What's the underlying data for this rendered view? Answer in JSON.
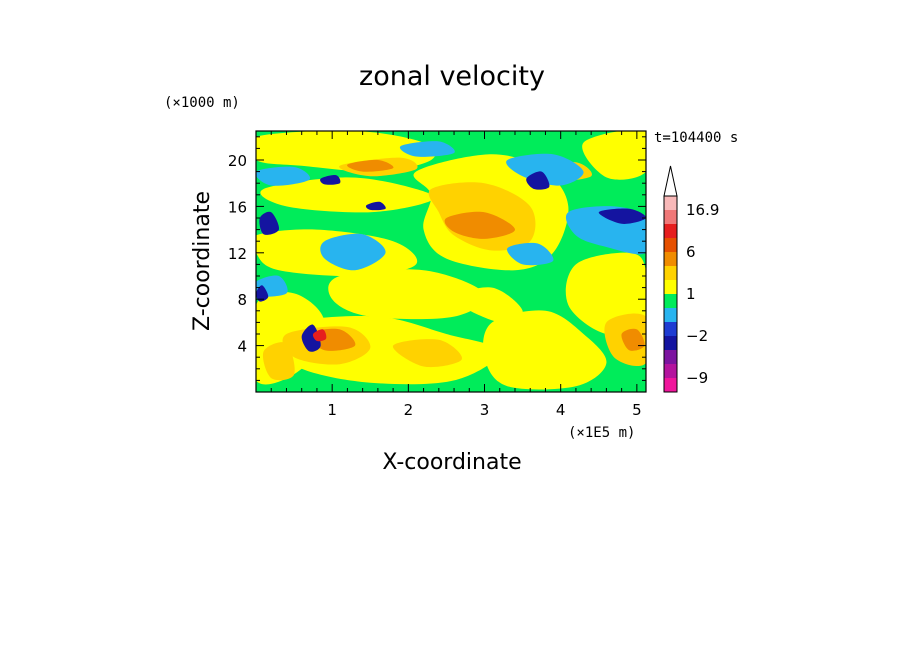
{
  "chart_data": {
    "type": "heatmap",
    "title": "zonal velocity",
    "xlabel": "X-coordinate",
    "ylabel": "Z-coordinate",
    "x_unit": "(×1E5 m)",
    "y_unit": "(×1000 m)",
    "time_label": "t=104400 s",
    "xlim": [
      0,
      5.12
    ],
    "ylim": [
      0,
      22.5
    ],
    "x_ticks": [
      "1",
      "2",
      "3",
      "4",
      "5"
    ],
    "y_ticks": [
      "4",
      "8",
      "12",
      "16",
      "20"
    ],
    "colorbar": {
      "labels": [
        "16.9",
        "6",
        "1",
        "−2",
        "−9"
      ],
      "label_levels": [
        16.9,
        6,
        1,
        -2,
        -9
      ],
      "max": 16.9,
      "levels": [
        -13,
        -9,
        -6,
        -4,
        -2,
        -1,
        0,
        1,
        2,
        4,
        6,
        8,
        12,
        16.9
      ],
      "colors": [
        "#f0169c",
        "#b4149e",
        "#7c14a0",
        "#1414a0",
        "#1e3cd2",
        "#28b4ef",
        "#00ec5a",
        "#ffff00",
        "#ffd200",
        "#f08c00",
        "#e65000",
        "#e61e1e",
        "#f07878",
        "#f8b8b8"
      ]
    },
    "bands": [
      {
        "color": "#00ec5a",
        "polys": [
          [
            [
              0,
              22.5
            ],
            [
              5.12,
              22.5
            ],
            [
              5.12,
              0
            ],
            [
              0,
              0
            ]
          ]
        ]
      },
      {
        "color": "#ffff00",
        "polys": [
          [
            [
              0,
              22
            ],
            [
              1.3,
              22.5
            ],
            [
              2.2,
              21.5
            ],
            [
              2.3,
              20
            ],
            [
              1.6,
              19
            ],
            [
              0.6,
              19.5
            ],
            [
              0,
              20
            ]
          ],
          [
            [
              0.1,
              17.5
            ],
            [
              1.2,
              18.5
            ],
            [
              2.1,
              17.5
            ],
            [
              2.3,
              16.5
            ],
            [
              1.5,
              15.5
            ],
            [
              0.4,
              16
            ]
          ],
          [
            [
              2.1,
              19
            ],
            [
              3.1,
              20.5
            ],
            [
              3.8,
              19
            ],
            [
              4.1,
              16
            ],
            [
              3.9,
              12
            ],
            [
              3.4,
              10.5
            ],
            [
              2.5,
              11.5
            ],
            [
              2.2,
              14
            ],
            [
              2.3,
              17
            ]
          ],
          [
            [
              0,
              13.5
            ],
            [
              0.8,
              14
            ],
            [
              1.8,
              13
            ],
            [
              2.1,
              11
            ],
            [
              1.4,
              10
            ],
            [
              0.3,
              10.5
            ],
            [
              0,
              12
            ]
          ],
          [
            [
              1.1,
              10
            ],
            [
              2.2,
              10.5
            ],
            [
              3.0,
              8.5
            ],
            [
              2.6,
              6.5
            ],
            [
              1.5,
              6.5
            ],
            [
              1.0,
              8
            ]
          ],
          [
            [
              0.5,
              6
            ],
            [
              1.6,
              6.5
            ],
            [
              2.5,
              5
            ],
            [
              3.2,
              3.5
            ],
            [
              2.6,
              1
            ],
            [
              1.5,
              0.8
            ],
            [
              0.6,
              2
            ],
            [
              0.3,
              4
            ]
          ],
          [
            [
              3.1,
              6
            ],
            [
              3.8,
              7
            ],
            [
              4.3,
              5
            ],
            [
              4.6,
              2.5
            ],
            [
              4.2,
              0.5
            ],
            [
              3.3,
              0.5
            ],
            [
              3.0,
              3
            ]
          ],
          [
            [
              4.2,
              11
            ],
            [
              4.9,
              12
            ],
            [
              5.12,
              10.5
            ],
            [
              5.12,
              6
            ],
            [
              4.6,
              5
            ],
            [
              4.1,
              7.5
            ]
          ],
          [
            [
              0,
              7.5
            ],
            [
              0.5,
              8.5
            ],
            [
              0.9,
              6
            ],
            [
              0.6,
              2
            ],
            [
              0,
              1
            ]
          ],
          [
            [
              4.3,
              21.5
            ],
            [
              5.12,
              22.5
            ],
            [
              5.12,
              19
            ],
            [
              4.6,
              18.5
            ]
          ],
          [
            [
              2.6,
              8
            ],
            [
              3.1,
              9
            ],
            [
              3.5,
              7
            ],
            [
              3.2,
              6
            ]
          ]
        ]
      },
      {
        "color": "#ffd200",
        "polys": [
          [
            [
              2.3,
              17.5
            ],
            [
              3.0,
              18
            ],
            [
              3.6,
              16
            ],
            [
              3.6,
              13
            ],
            [
              3.1,
              12.2
            ],
            [
              2.6,
              13.5
            ],
            [
              2.4,
              15.5
            ]
          ],
          [
            [
              1.1,
              19.5
            ],
            [
              1.9,
              20.2
            ],
            [
              2.1,
              19.2
            ],
            [
              1.5,
              18.6
            ]
          ],
          [
            [
              0.4,
              5
            ],
            [
              1.2,
              5.6
            ],
            [
              1.5,
              3.8
            ],
            [
              1.1,
              2.4
            ],
            [
              0.5,
              3
            ]
          ],
          [
            [
              4.6,
              6
            ],
            [
              5.12,
              6.5
            ],
            [
              5.12,
              2.5
            ],
            [
              4.7,
              3
            ]
          ],
          [
            [
              1.8,
              4
            ],
            [
              2.4,
              4.5
            ],
            [
              2.7,
              2.8
            ],
            [
              2.2,
              2.2
            ]
          ],
          [
            [
              3.7,
              19.2
            ],
            [
              4.2,
              19.8
            ],
            [
              4.4,
              18.6
            ],
            [
              3.9,
              18.2
            ]
          ],
          [
            [
              0.1,
              3.5
            ],
            [
              0.4,
              4.2
            ],
            [
              0.5,
              1.5
            ],
            [
              0.2,
              1.2
            ]
          ]
        ]
      },
      {
        "color": "#f08c00",
        "polys": [
          [
            [
              2.5,
              15
            ],
            [
              3.0,
              15.5
            ],
            [
              3.4,
              14
            ],
            [
              3.0,
              13.2
            ],
            [
              2.6,
              13.8
            ]
          ],
          [
            [
              0.7,
              5
            ],
            [
              1.1,
              5.4
            ],
            [
              1.3,
              4
            ],
            [
              0.9,
              3.6
            ]
          ],
          [
            [
              4.8,
              5
            ],
            [
              5.0,
              5.4
            ],
            [
              5.1,
              4
            ],
            [
              4.9,
              3.6
            ]
          ],
          [
            [
              1.2,
              19.6
            ],
            [
              1.6,
              20
            ],
            [
              1.8,
              19.3
            ],
            [
              1.4,
              19
            ]
          ]
        ]
      },
      {
        "color": "#28b4ef",
        "polys": [
          [
            [
              0.9,
              13
            ],
            [
              1.4,
              13.6
            ],
            [
              1.7,
              12
            ],
            [
              1.3,
              10.5
            ],
            [
              0.9,
              11.5
            ]
          ],
          [
            [
              3.3,
              20
            ],
            [
              3.9,
              20.5
            ],
            [
              4.3,
              19
            ],
            [
              4.0,
              17.8
            ],
            [
              3.5,
              18.6
            ]
          ],
          [
            [
              4.1,
              15.5
            ],
            [
              4.7,
              16
            ],
            [
              5.12,
              15
            ],
            [
              5.12,
              12
            ],
            [
              4.6,
              12.5
            ],
            [
              4.2,
              13.5
            ]
          ],
          [
            [
              0,
              19
            ],
            [
              0.5,
              19.4
            ],
            [
              0.7,
              18.3
            ],
            [
              0.2,
              17.8
            ]
          ],
          [
            [
              1.9,
              21.2
            ],
            [
              2.4,
              21.6
            ],
            [
              2.6,
              20.6
            ],
            [
              2.1,
              20.3
            ]
          ],
          [
            [
              3.3,
              12.4
            ],
            [
              3.7,
              12.8
            ],
            [
              3.9,
              11.3
            ],
            [
              3.5,
              11
            ]
          ],
          [
            [
              0,
              9.5
            ],
            [
              0.3,
              10
            ],
            [
              0.4,
              8.5
            ],
            [
              0,
              8.3
            ]
          ]
        ]
      },
      {
        "color": "#1414a0",
        "polys": [
          [
            [
              0.05,
              15
            ],
            [
              0.2,
              15.5
            ],
            [
              0.3,
              14
            ],
            [
              0.1,
              13.6
            ]
          ],
          [
            [
              0.6,
              4.8
            ],
            [
              0.75,
              5.8
            ],
            [
              0.85,
              4
            ],
            [
              0.7,
              3.5
            ]
          ],
          [
            [
              4.5,
              15.5
            ],
            [
              4.9,
              15.8
            ],
            [
              5.12,
              15
            ],
            [
              4.8,
              14.5
            ]
          ],
          [
            [
              0.85,
              18.4
            ],
            [
              1.05,
              18.7
            ],
            [
              1.1,
              18
            ],
            [
              0.9,
              17.9
            ]
          ],
          [
            [
              3.55,
              18.4
            ],
            [
              3.75,
              19
            ],
            [
              3.85,
              17.7
            ],
            [
              3.65,
              17.5
            ]
          ],
          [
            [
              1.45,
              16.1
            ],
            [
              1.62,
              16.4
            ],
            [
              1.7,
              15.8
            ],
            [
              1.5,
              15.7
            ]
          ],
          [
            [
              0,
              8.5
            ],
            [
              0.08,
              9.2
            ],
            [
              0.16,
              8.2
            ],
            [
              0.05,
              7.8
            ]
          ]
        ]
      },
      {
        "color": "#e61e1e",
        "polys": [
          [
            [
              0.75,
              5
            ],
            [
              0.88,
              5.4
            ],
            [
              0.92,
              4.6
            ],
            [
              0.8,
              4.4
            ]
          ]
        ]
      }
    ]
  }
}
